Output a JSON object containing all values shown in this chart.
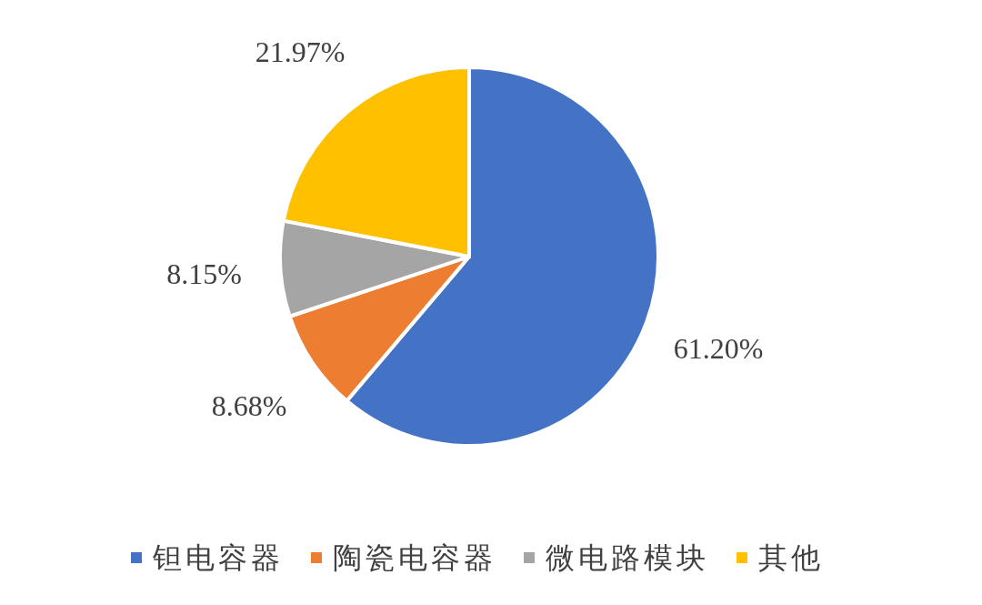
{
  "chart_data": {
    "type": "pie",
    "categories": [
      "钽电容器",
      "陶瓷电容器",
      "微电路模块",
      "其他"
    ],
    "values": [
      61.2,
      8.68,
      8.15,
      21.97
    ],
    "colors": [
      "#4472c4",
      "#ed7d31",
      "#a5a5a5",
      "#ffc000"
    ],
    "value_labels": [
      "61.20%",
      "8.68%",
      "8.15%",
      "21.97%"
    ],
    "legend": "bottom"
  }
}
